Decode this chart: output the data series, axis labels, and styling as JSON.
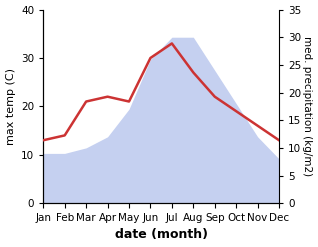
{
  "months": [
    "Jan",
    "Feb",
    "Mar",
    "Apr",
    "May",
    "Jun",
    "Jul",
    "Aug",
    "Sep",
    "Oct",
    "Nov",
    "Dec"
  ],
  "month_indices": [
    0,
    1,
    2,
    3,
    4,
    5,
    6,
    7,
    8,
    9,
    10,
    11
  ],
  "temp": [
    13,
    14,
    21,
    22,
    21,
    30,
    33,
    27,
    22,
    19,
    16,
    13
  ],
  "precip": [
    9,
    9,
    10,
    12,
    17,
    26,
    30,
    30,
    24,
    18,
    12,
    8
  ],
  "temp_color": "#cc3333",
  "precip_color": "#c5d0f0",
  "background": "#ffffff",
  "temp_ylim": [
    0,
    40
  ],
  "precip_ylim": [
    0,
    35
  ],
  "xlabel": "date (month)",
  "ylabel_left": "max temp (C)",
  "ylabel_right": "med. precipitation (kg/m2)",
  "label_fontsize": 8,
  "tick_fontsize": 7.5,
  "xlabel_fontsize": 9
}
